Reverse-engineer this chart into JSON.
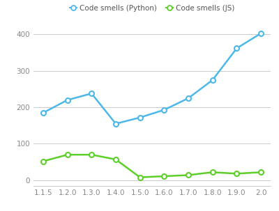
{
  "x_labels": [
    "1.1.5",
    "1.2.0",
    "1.3.0",
    "1.4.0",
    "1.5.0",
    "1.6.0",
    "1.7.0",
    "1.8.0",
    "1.9.0",
    "2.0"
  ],
  "python_y": [
    185,
    220,
    238,
    155,
    172,
    193,
    225,
    275,
    362,
    403
  ],
  "js_y": [
    52,
    70,
    70,
    57,
    8,
    11,
    14,
    22,
    18,
    22
  ],
  "python_color": "#4db8e8",
  "js_color": "#5ecf2a",
  "background_color": "#ffffff",
  "grid_color": "#cccccc",
  "legend_python": "Code smells (Python)",
  "legend_js": "Code smells (JS)",
  "yticks": [
    0,
    100,
    200,
    300,
    400
  ],
  "ylim": [
    -15,
    425
  ],
  "tick_color": "#888888",
  "tick_fontsize": 7.5,
  "marker_size": 5,
  "linewidth": 1.8
}
